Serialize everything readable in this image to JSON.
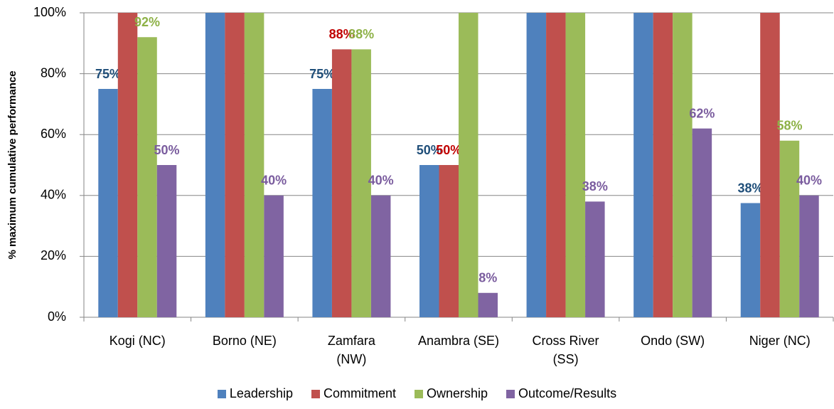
{
  "chart_data": {
    "type": "bar",
    "y_axis_label": "% maximum cumulative performance",
    "categories": [
      "Kogi (NC)",
      "Borno (NE)",
      "Zamfara\n(NW)",
      "Anambra (SE)",
      "Cross River\n(SS)",
      "Ondo (SW)",
      "Niger (NC)"
    ],
    "series": [
      {
        "name": "Leadership",
        "color": "#4f81bd",
        "label_color": "#1f4e79",
        "values": [
          75,
          100,
          75,
          50,
          100,
          100,
          37.5
        ],
        "value_labels": [
          "75%",
          null,
          "75%",
          "50%",
          null,
          null,
          "38%"
        ]
      },
      {
        "name": "Commitment",
        "color": "#c0504d",
        "label_color": "#c00000",
        "values": [
          100,
          100,
          88,
          50,
          100,
          100,
          100
        ],
        "value_labels": [
          null,
          null,
          "88%",
          "50%",
          null,
          null,
          null
        ]
      },
      {
        "name": "Ownership",
        "color": "#9bbb59",
        "label_color": "#8db146",
        "values": [
          92,
          100,
          88,
          100,
          100,
          100,
          58
        ],
        "value_labels": [
          "92%",
          null,
          "88%",
          null,
          null,
          null,
          "58%"
        ]
      },
      {
        "name": "Outcome/Results",
        "color": "#8064a2",
        "label_color": "#7a5c9e",
        "values": [
          50,
          40,
          40,
          8,
          38,
          62,
          40
        ],
        "value_labels": [
          "50%",
          "40%",
          "40%",
          "8%",
          "38%",
          "62%",
          "40%"
        ]
      }
    ],
    "ylim": [
      0,
      100
    ],
    "yticks": [
      {
        "value": 0,
        "label": "0%"
      },
      {
        "value": 20,
        "label": "20%"
      },
      {
        "value": 40,
        "label": "40%"
      },
      {
        "value": 60,
        "label": "60%"
      },
      {
        "value": 80,
        "label": "80%"
      },
      {
        "value": 100,
        "label": "100%"
      }
    ],
    "grid": true,
    "legend": "bottom"
  }
}
